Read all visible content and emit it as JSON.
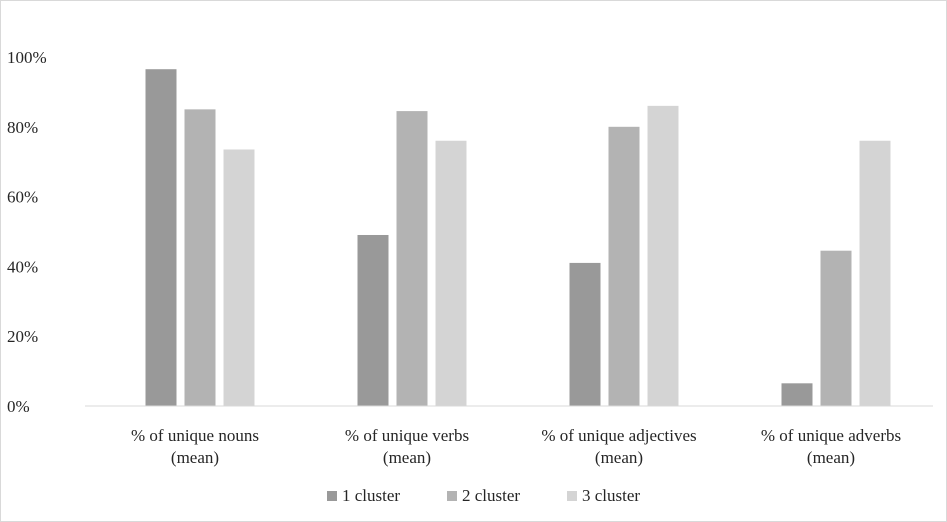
{
  "chart_data": {
    "type": "bar",
    "title": "",
    "xlabel": "",
    "ylabel": "",
    "ylim": [
      0,
      100
    ],
    "y_ticks": [
      "0%",
      "20%",
      "40%",
      "60%",
      "80%",
      "100%"
    ],
    "categories": [
      [
        "% of unique nouns",
        "(mean)"
      ],
      [
        "% of unique verbs",
        "(mean)"
      ],
      [
        "% of unique adjectives",
        "(mean)"
      ],
      [
        "% of unique adverbs",
        "(mean)"
      ]
    ],
    "series": [
      {
        "name": "1 cluster",
        "color": "#999999",
        "values": [
          96.5,
          49,
          41,
          6.5
        ]
      },
      {
        "name": "2 cluster",
        "color": "#b3b3b3",
        "values": [
          85,
          84.5,
          80,
          44.5
        ]
      },
      {
        "name": "3 cluster",
        "color": "#d4d4d4",
        "values": [
          73.5,
          76,
          86,
          76
        ]
      }
    ],
    "grid": false,
    "legend": "bottom"
  }
}
